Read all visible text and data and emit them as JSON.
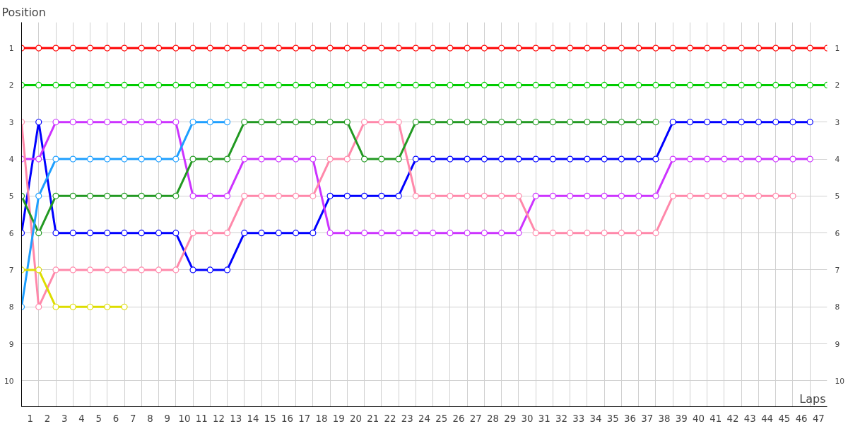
{
  "chart_data": {
    "type": "line",
    "xlabel": "Laps",
    "ylabel": "Position",
    "x": [
      0,
      1,
      2,
      3,
      4,
      5,
      6,
      7,
      8,
      9,
      10,
      11,
      12,
      13,
      14,
      15,
      16,
      17,
      18,
      19,
      20,
      21,
      22,
      23,
      24,
      25,
      26,
      27,
      28,
      29,
      30,
      31,
      32,
      33,
      34,
      35,
      36,
      37,
      38,
      39,
      40,
      41,
      42,
      43,
      44,
      45,
      46,
      47
    ],
    "series": [
      {
        "color": "#ff0000",
        "values": [
          1,
          1,
          1,
          1,
          1,
          1,
          1,
          1,
          1,
          1,
          1,
          1,
          1,
          1,
          1,
          1,
          1,
          1,
          1,
          1,
          1,
          1,
          1,
          1,
          1,
          1,
          1,
          1,
          1,
          1,
          1,
          1,
          1,
          1,
          1,
          1,
          1,
          1,
          1,
          1,
          1,
          1,
          1,
          1,
          1,
          1,
          1,
          1
        ]
      },
      {
        "color": "#00cc00",
        "values": [
          2,
          2,
          2,
          2,
          2,
          2,
          2,
          2,
          2,
          2,
          2,
          2,
          2,
          2,
          2,
          2,
          2,
          2,
          2,
          2,
          2,
          2,
          2,
          2,
          2,
          2,
          2,
          2,
          2,
          2,
          2,
          2,
          2,
          2,
          2,
          2,
          2,
          2,
          2,
          2,
          2,
          2,
          2,
          2,
          2,
          2,
          2,
          2
        ]
      },
      {
        "color": "#0000ff",
        "values": [
          6,
          3,
          6,
          6,
          6,
          6,
          6,
          6,
          6,
          6,
          7,
          7,
          7,
          6,
          6,
          6,
          6,
          6,
          5,
          5,
          5,
          5,
          5,
          4,
          4,
          4,
          4,
          4,
          4,
          4,
          4,
          4,
          4,
          4,
          4,
          4,
          4,
          4,
          3,
          3,
          3,
          3,
          3,
          3,
          3,
          3,
          3,
          null
        ]
      },
      {
        "color": "#cc33ff",
        "values": [
          4,
          4,
          3,
          3,
          3,
          3,
          3,
          3,
          3,
          3,
          5,
          5,
          5,
          4,
          4,
          4,
          4,
          4,
          6,
          6,
          6,
          6,
          6,
          6,
          6,
          6,
          6,
          6,
          6,
          6,
          5,
          5,
          5,
          5,
          5,
          5,
          5,
          5,
          4,
          4,
          4,
          4,
          4,
          4,
          4,
          4,
          4,
          null
        ]
      },
      {
        "color": "#ff88aa",
        "values": [
          3,
          8,
          7,
          7,
          7,
          7,
          7,
          7,
          7,
          7,
          6,
          6,
          6,
          5,
          5,
          5,
          5,
          5,
          4,
          4,
          3,
          3,
          3,
          5,
          5,
          5,
          5,
          5,
          5,
          5,
          6,
          6,
          6,
          6,
          6,
          6,
          6,
          6,
          5,
          5,
          5,
          5,
          5,
          5,
          5,
          5,
          null,
          null
        ]
      },
      {
        "color": "#229922",
        "values": [
          5,
          6,
          5,
          5,
          5,
          5,
          5,
          5,
          5,
          5,
          4,
          4,
          4,
          3,
          3,
          3,
          3,
          3,
          3,
          3,
          4,
          4,
          4,
          3,
          3,
          3,
          3,
          3,
          3,
          3,
          3,
          3,
          3,
          3,
          3,
          3,
          3,
          3,
          null,
          null,
          null,
          null,
          null,
          null,
          null,
          null,
          null,
          null
        ]
      },
      {
        "color": "#1e9fff",
        "values": [
          8,
          5,
          4,
          4,
          4,
          4,
          4,
          4,
          4,
          4,
          3,
          3,
          3,
          null,
          null,
          null,
          null,
          null,
          null,
          null,
          null,
          null,
          null,
          null,
          null,
          null,
          null,
          null,
          null,
          null,
          null,
          null,
          null,
          null,
          null,
          null,
          null,
          null,
          null,
          null,
          null,
          null,
          null,
          null,
          null,
          null,
          null,
          null
        ]
      },
      {
        "color": "#dddd00",
        "values": [
          7,
          7,
          8,
          8,
          8,
          8,
          8,
          null,
          null,
          null,
          null,
          null,
          null,
          null,
          null,
          null,
          null,
          null,
          null,
          null,
          null,
          null,
          null,
          null,
          null,
          null,
          null,
          null,
          null,
          null,
          null,
          null,
          null,
          null,
          null,
          null,
          null,
          null,
          null,
          null,
          null,
          null,
          null,
          null,
          null,
          null,
          null,
          null
        ]
      }
    ],
    "xlim": [
      0,
      47
    ],
    "ylim": [
      10.7,
      0.3
    ],
    "xticks": [
      {
        "value": 0.5,
        "label": "1"
      },
      {
        "value": 1.5,
        "label": "2"
      },
      {
        "value": 2.5,
        "label": "3"
      },
      {
        "value": 3.5,
        "label": "4"
      },
      {
        "value": 4.5,
        "label": "5"
      },
      {
        "value": 5.5,
        "label": "6"
      },
      {
        "value": 6.5,
        "label": "7"
      },
      {
        "value": 7.5,
        "label": "8"
      },
      {
        "value": 8.5,
        "label": "9"
      },
      {
        "value": 9.5,
        "label": "10"
      },
      {
        "value": 10.5,
        "label": "11"
      },
      {
        "value": 11.5,
        "label": "12"
      },
      {
        "value": 12.5,
        "label": "13"
      },
      {
        "value": 13.5,
        "label": "14"
      },
      {
        "value": 14.5,
        "label": "15"
      },
      {
        "value": 15.5,
        "label": "16"
      },
      {
        "value": 16.5,
        "label": "17"
      },
      {
        "value": 17.5,
        "label": "18"
      },
      {
        "value": 18.5,
        "label": "19"
      },
      {
        "value": 19.5,
        "label": "20"
      },
      {
        "value": 20.5,
        "label": "21"
      },
      {
        "value": 21.5,
        "label": "22"
      },
      {
        "value": 22.5,
        "label": "23"
      },
      {
        "value": 23.5,
        "label": "24"
      },
      {
        "value": 24.5,
        "label": "25"
      },
      {
        "value": 25.5,
        "label": "26"
      },
      {
        "value": 26.5,
        "label": "27"
      },
      {
        "value": 27.5,
        "label": "28"
      },
      {
        "value": 28.5,
        "label": "29"
      },
      {
        "value": 29.5,
        "label": "30"
      },
      {
        "value": 30.5,
        "label": "31"
      },
      {
        "value": 31.5,
        "label": "32"
      },
      {
        "value": 32.5,
        "label": "33"
      },
      {
        "value": 33.5,
        "label": "34"
      },
      {
        "value": 34.5,
        "label": "35"
      },
      {
        "value": 35.5,
        "label": "36"
      },
      {
        "value": 36.5,
        "label": "37"
      },
      {
        "value": 37.5,
        "label": "38"
      },
      {
        "value": 38.5,
        "label": "39"
      },
      {
        "value": 39.5,
        "label": "40"
      },
      {
        "value": 40.5,
        "label": "41"
      },
      {
        "value": 41.5,
        "label": "42"
      },
      {
        "value": 42.5,
        "label": "43"
      },
      {
        "value": 43.5,
        "label": "44"
      },
      {
        "value": 44.5,
        "label": "45"
      },
      {
        "value": 45.5,
        "label": "46"
      },
      {
        "value": 46.5,
        "label": "47"
      }
    ],
    "yticks": [
      1,
      2,
      3,
      4,
      5,
      6,
      7,
      8,
      9,
      10
    ],
    "y2lim": [
      10.7,
      0.3
    ],
    "y2ticks": [
      1,
      2,
      3,
      4,
      5,
      6,
      7,
      8,
      9,
      10
    ],
    "grid": true,
    "marker": "circle",
    "line_style": "solid"
  }
}
